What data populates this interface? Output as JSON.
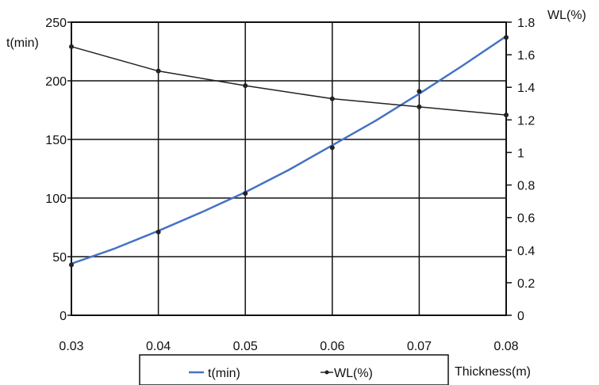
{
  "chart_data": {
    "type": "line",
    "title": "",
    "xlabel": "Thickness(m)",
    "ylabel_left": "t(min)",
    "ylabel_right": "WL(%)",
    "x": [
      0.03,
      0.04,
      0.05,
      0.06,
      0.07,
      0.08
    ],
    "x_ticks": [
      "0.03",
      "0.04",
      "0.05",
      "0.06",
      "0.07",
      "0.08"
    ],
    "xlim": [
      0.03,
      0.08
    ],
    "ylim_left": [
      0,
      250
    ],
    "y_ticks_left": [
      "0",
      "50",
      "100",
      "150",
      "200",
      "250"
    ],
    "ylim_right": [
      0,
      1.8
    ],
    "y_ticks_right": [
      "0",
      "0.2",
      "0.4",
      "0.6",
      "0.8",
      "1",
      "1.2",
      "1.4",
      "1.6",
      "1.8"
    ],
    "grid": true,
    "legend_position": "bottom",
    "series": [
      {
        "name": "t(min)",
        "axis": "left",
        "color": "#4472c4",
        "marker": "none",
        "x": [
          0.03,
          0.035,
          0.04,
          0.045,
          0.05,
          0.055,
          0.06,
          0.065,
          0.07,
          0.075,
          0.08
        ],
        "values": [
          44,
          57,
          72,
          88,
          105,
          124,
          145,
          166,
          189,
          213,
          238
        ]
      },
      {
        "name": "WL(%)",
        "axis": "right",
        "color": "#222222",
        "marker": "dot",
        "x": [
          0.03,
          0.04,
          0.05,
          0.06,
          0.07,
          0.08
        ],
        "values": [
          1.65,
          1.5,
          1.41,
          1.33,
          1.28,
          1.23
        ]
      }
    ],
    "scatter_points": {
      "axis": "left",
      "x": [
        0.03,
        0.04,
        0.05,
        0.06,
        0.07,
        0.08
      ],
      "values": [
        43,
        71,
        104,
        143,
        191,
        237
      ]
    }
  }
}
